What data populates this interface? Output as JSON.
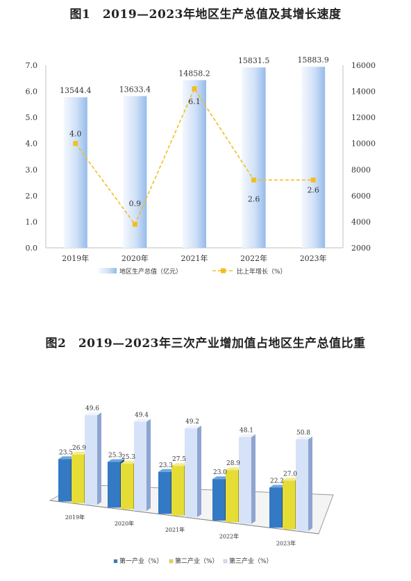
{
  "chart_data": [
    {
      "type": "bar",
      "title": "图1　2019—2023年地区生产总值及其增长速度",
      "categories": [
        "2019年",
        "2020年",
        "2021年",
        "2022年",
        "2023年"
      ],
      "series": [
        {
          "name": "地区生产总值（亿元）",
          "type": "bar",
          "axis": "right",
          "values": [
            13544.4,
            13633.4,
            14858.2,
            15831.5,
            15883.9
          ],
          "labels": [
            "13544.4",
            "13633.4",
            "14858.2",
            "15831.5",
            "15883.9"
          ]
        },
        {
          "name": "比上年增长（%）",
          "type": "line",
          "axis": "left",
          "values": [
            4.0,
            0.9,
            6.1,
            2.6,
            2.6
          ],
          "labels": [
            "4.0",
            "0.9",
            "6.1",
            "2.6",
            "2.6"
          ]
        }
      ],
      "y_left": {
        "min": 0,
        "max": 7.0,
        "ticks": [
          "0.0",
          "1.0",
          "2.0",
          "3.0",
          "4.0",
          "5.0",
          "6.0",
          "7.0"
        ]
      },
      "y_right": {
        "min": 2000,
        "max": 16000,
        "ticks": [
          "2000",
          "4000",
          "6000",
          "8000",
          "10000",
          "12000",
          "14000",
          "16000"
        ]
      },
      "legend_position": "bottom",
      "colors": {
        "bar_light": "#eef4fc",
        "bar_dark": "#9cc0ec",
        "line": "#f2be1f"
      }
    },
    {
      "type": "bar",
      "title": "图2　2019—2023年三次产业增加值占地区生产总值比重",
      "categories": [
        "2019年",
        "2020年",
        "2021年",
        "2022年",
        "2023年"
      ],
      "series": [
        {
          "name": "第一产业（%）",
          "values": [
            23.5,
            25.3,
            23.3,
            23.0,
            22.2
          ],
          "labels": [
            "23.5",
            "25.3",
            "23.3",
            "23.0",
            "22.2"
          ]
        },
        {
          "name": "第二产业（%）",
          "values": [
            26.9,
            25.3,
            27.5,
            28.9,
            27.0
          ],
          "labels": [
            "26.9",
            "25.3",
            "27.5",
            "28.9",
            "27.0"
          ]
        },
        {
          "name": "第三产业（%）",
          "values": [
            49.6,
            49.4,
            49.2,
            48.1,
            50.8
          ],
          "labels": [
            "49.6",
            "49.4",
            "49.2",
            "48.1",
            "50.8"
          ]
        }
      ],
      "style": "3d-perspective",
      "legend_position": "bottom",
      "colors": {
        "primary": "#2f7bc6",
        "secondary": "#e8dd3a",
        "tertiary": "#c8d8f4"
      }
    }
  ]
}
